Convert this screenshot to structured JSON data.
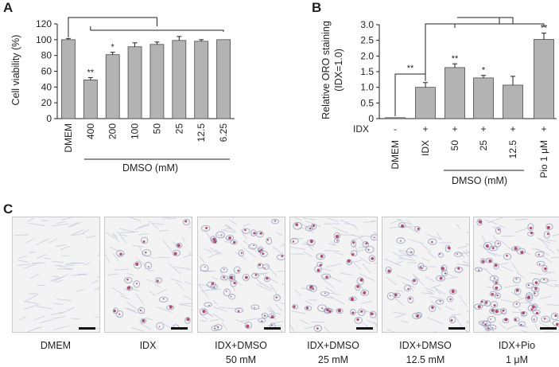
{
  "panels": {
    "a": "A",
    "b": "B",
    "c": "C"
  },
  "chart_data": [
    {
      "type": "bar",
      "panel": "A",
      "ylabel": "Cell viability (%)",
      "ylim": [
        0,
        120
      ],
      "yticks": [
        "0",
        "20",
        "40",
        "60",
        "80",
        "100",
        "120"
      ],
      "categories": [
        "DMEM",
        "400",
        "200",
        "100",
        "50",
        "25",
        "12.5",
        "6.25"
      ],
      "values": [
        100,
        49,
        81,
        91,
        94,
        99,
        98,
        100
      ],
      "errors": [
        1.5,
        3,
        3,
        5,
        3,
        5,
        2,
        0
      ],
      "significance": [
        "",
        "**",
        "*",
        "",
        "",
        "",
        "",
        ""
      ],
      "group_label": "DMSO (mM)"
    },
    {
      "type": "bar",
      "panel": "B",
      "ylabel": "Relative ORO staining",
      "ylabel2": "(IDX=1.0)",
      "ylim": [
        0,
        3.0
      ],
      "yticks": [
        "0",
        "0.5",
        "1.0",
        "1.5",
        "2.0",
        "2.5",
        "3.0"
      ],
      "categories": [
        "DMEM",
        "IDX",
        "50",
        "25",
        "12.5",
        "Pio 1 μM"
      ],
      "values": [
        0.03,
        1.0,
        1.63,
        1.3,
        1.07,
        2.53
      ],
      "errors": [
        0,
        0.15,
        0.12,
        0.08,
        0.28,
        0.2
      ],
      "significance": [
        "",
        "",
        "**",
        "*",
        "",
        "**"
      ],
      "comparison_label": "**",
      "idx_label": "IDX",
      "idx_row": [
        "-",
        "+",
        "+",
        "+",
        "+",
        "+"
      ],
      "group_label": "DMSO (mM)"
    }
  ],
  "micrographs": [
    {
      "label1": "DMEM",
      "label2": "",
      "stain": 0.0
    },
    {
      "label1": "IDX",
      "label2": "",
      "stain": 0.35
    },
    {
      "label1": "IDX+DMSO",
      "label2": "50 mM",
      "stain": 0.75
    },
    {
      "label1": "IDX+DMSO",
      "label2": "25 mM",
      "stain": 0.6
    },
    {
      "label1": "IDX+DMSO",
      "label2": "12.5 mM",
      "stain": 0.45
    },
    {
      "label1": "IDX+Pio",
      "label2": "1 μM",
      "stain": 0.95
    }
  ],
  "colors": {
    "bar": "#b3b3b3",
    "bar_edge": "#4d4d4d",
    "stain": "#a8325a",
    "cells": "#8d97b8"
  }
}
